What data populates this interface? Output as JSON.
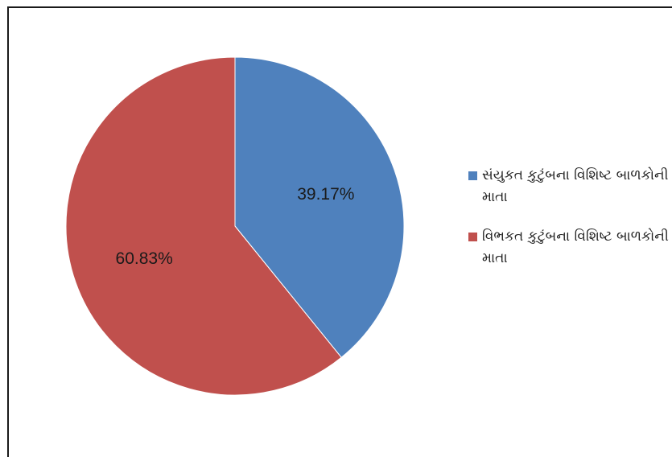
{
  "chart_data": {
    "type": "pie",
    "title": "",
    "slices": [
      {
        "label": "સંયુકત કુટુંબના વિશિષ્ટ બાળકોની માતા",
        "value": 39.17,
        "display": "39.17%",
        "color": "#4F81BD"
      },
      {
        "label": "વિભકત કુટુંબના વિશિષ્ટ બાળકોની માતા",
        "value": 60.83,
        "display": "60.83%",
        "color": "#C0504D"
      }
    ],
    "legend": "right"
  }
}
